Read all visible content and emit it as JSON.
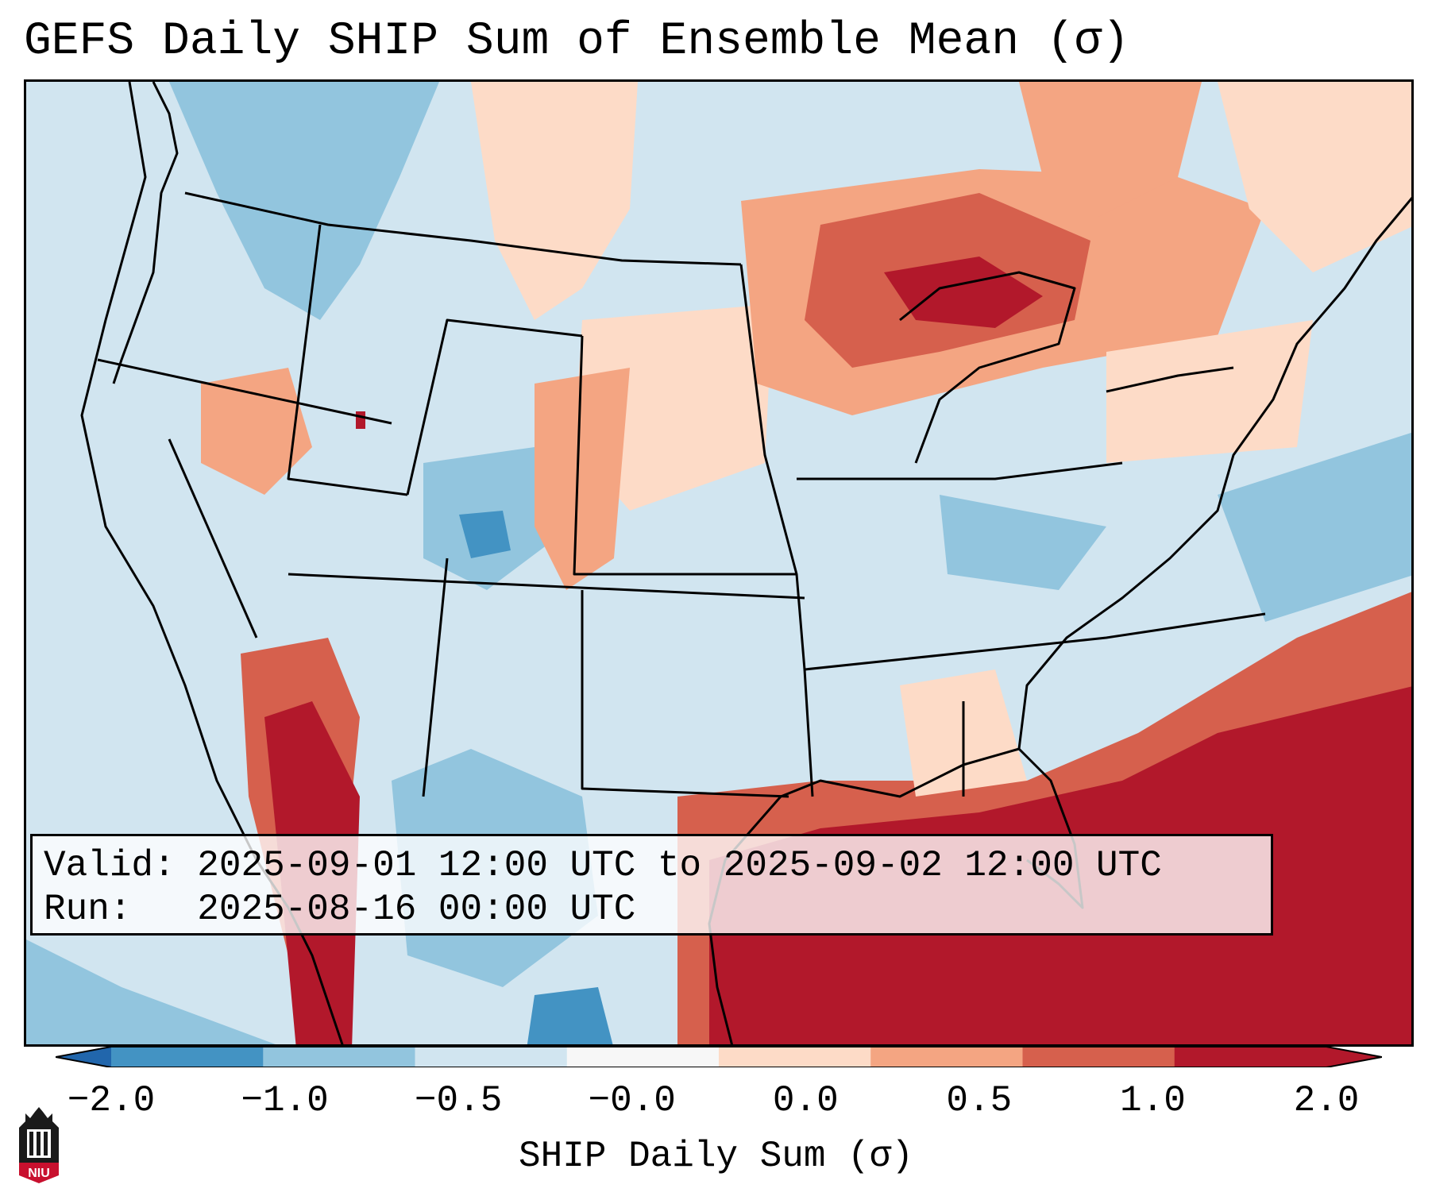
{
  "title": "GEFS Daily SHIP Sum of Ensemble Mean (σ)",
  "info": {
    "valid_label": "Valid:",
    "valid_value": "2025-09-01 12:00 UTC to 2025-09-02 12:00 UTC",
    "run_label": "Run:",
    "run_value": "2025-08-16 00:00 UTC"
  },
  "colorbar": {
    "label": "SHIP Daily Sum (σ)",
    "ticks": [
      "−2.0",
      "−1.0",
      "−0.5",
      "−0.0",
      "0.0",
      "0.5",
      "1.0",
      "2.0"
    ],
    "colors": [
      "#4393c3",
      "#92c5de",
      "#d1e5f0",
      "#f7f7f7",
      "#fddbc7",
      "#f4a582",
      "#d6604d",
      "#b2182b"
    ],
    "extend_low_color": "#2166ac",
    "extend_high_color": "#b2182b"
  },
  "logo": {
    "text": "NIU",
    "icon": "niu-logo-icon"
  }
}
